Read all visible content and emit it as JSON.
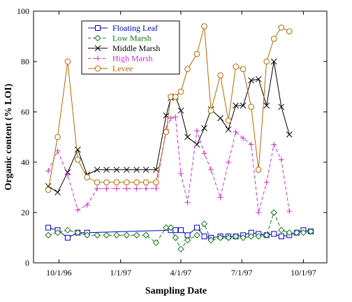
{
  "chart_data": {
    "type": "line",
    "xlabel": "Sampling Date",
    "ylabel": "Organic content (% LOI)",
    "ylim": [
      0,
      100
    ],
    "y_ticks": [
      0,
      20,
      40,
      60,
      80,
      100
    ],
    "x_ticks": [
      {
        "label": "10/1/96",
        "date": "1996-10-01"
      },
      {
        "label": "1/1/97",
        "date": "1997-01-01"
      },
      {
        "label": "4/1/97",
        "date": "1997-04-01"
      },
      {
        "label": "7/1/97",
        "date": "1997-07-01"
      },
      {
        "label": "10/1/97",
        "date": "1997-10-01"
      }
    ],
    "x": [
      "1996-09-15",
      "1996-09-29",
      "1996-10-14",
      "1996-10-29",
      "1996-11-12",
      "1996-11-27",
      "1996-12-11",
      "1996-12-26",
      "1997-01-10",
      "1997-01-25",
      "1997-02-08",
      "1997-02-23",
      "1997-03-10",
      "1997-03-17",
      "1997-03-24",
      "1997-04-01",
      "1997-04-11",
      "1997-04-25",
      "1997-05-06",
      "1997-05-16",
      "1997-05-30",
      "1997-06-11",
      "1997-06-22",
      "1997-07-03",
      "1997-07-15",
      "1997-07-26",
      "1997-08-07",
      "1997-08-18",
      "1997-08-29",
      "1997-09-10",
      "1997-09-21",
      "1997-10-01",
      "1997-10-12",
      "1997-10-23"
    ],
    "legend_position": "top-left",
    "grid": false,
    "series": [
      {
        "name": "Floating Leaf",
        "color": "#0000cc",
        "marker": "square",
        "dash": "solid",
        "values": [
          14,
          13,
          10,
          12,
          12,
          null,
          null,
          null,
          null,
          null,
          null,
          null,
          null,
          13,
          13,
          13,
          11,
          14,
          10.5,
          10,
          10.5,
          10.5,
          10.5,
          11,
          12,
          11.5,
          11,
          11.5,
          10.5,
          11,
          12,
          13,
          12.5,
          null
        ]
      },
      {
        "name": "Low Marsh",
        "color": "#117711",
        "marker": "diamond",
        "dash": "dashed",
        "values": [
          11,
          12,
          13,
          12,
          11,
          11,
          11,
          11,
          11,
          11,
          11,
          8,
          14,
          14,
          10,
          5.5,
          9,
          11,
          15.5,
          9,
          10,
          10,
          10.5,
          10,
          10.5,
          10.5,
          11,
          20,
          13,
          12,
          12,
          12,
          12.5,
          null
        ]
      },
      {
        "name": "Middle Marsh",
        "color": "#000000",
        "marker": "x",
        "dash": "solid",
        "values": [
          30.5,
          28,
          36,
          45,
          35,
          37,
          37,
          37,
          37,
          37,
          37,
          37,
          58.5,
          65.5,
          66,
          60.5,
          50,
          47,
          53.5,
          61,
          57.5,
          53,
          62.5,
          62.5,
          72.5,
          73,
          62.5,
          80,
          62,
          51,
          null,
          null,
          null,
          null
        ]
      },
      {
        "name": "High Marsh",
        "color": "#cc33cc",
        "marker": "plus",
        "dash": "dashed",
        "values": [
          36.5,
          44.5,
          35,
          21,
          23,
          29.5,
          29.5,
          29.5,
          29.5,
          29.5,
          29.5,
          29.5,
          53,
          57.5,
          58,
          35.5,
          24,
          52.5,
          43.5,
          37,
          26,
          40,
          52,
          49.5,
          47,
          20,
          32,
          47,
          41,
          20.5,
          null,
          null,
          null,
          null
        ]
      },
      {
        "name": "Levee",
        "color": "#bb6600",
        "marker": "circle",
        "dash": "solid",
        "values": [
          29,
          50,
          80,
          41,
          34,
          32,
          32,
          32,
          32,
          32,
          32,
          32,
          52,
          66,
          66,
          68,
          77,
          83,
          94,
          60.5,
          74.5,
          56.5,
          78,
          77,
          62,
          37,
          80,
          89,
          93.5,
          92,
          null,
          null,
          null,
          null
        ]
      }
    ]
  }
}
